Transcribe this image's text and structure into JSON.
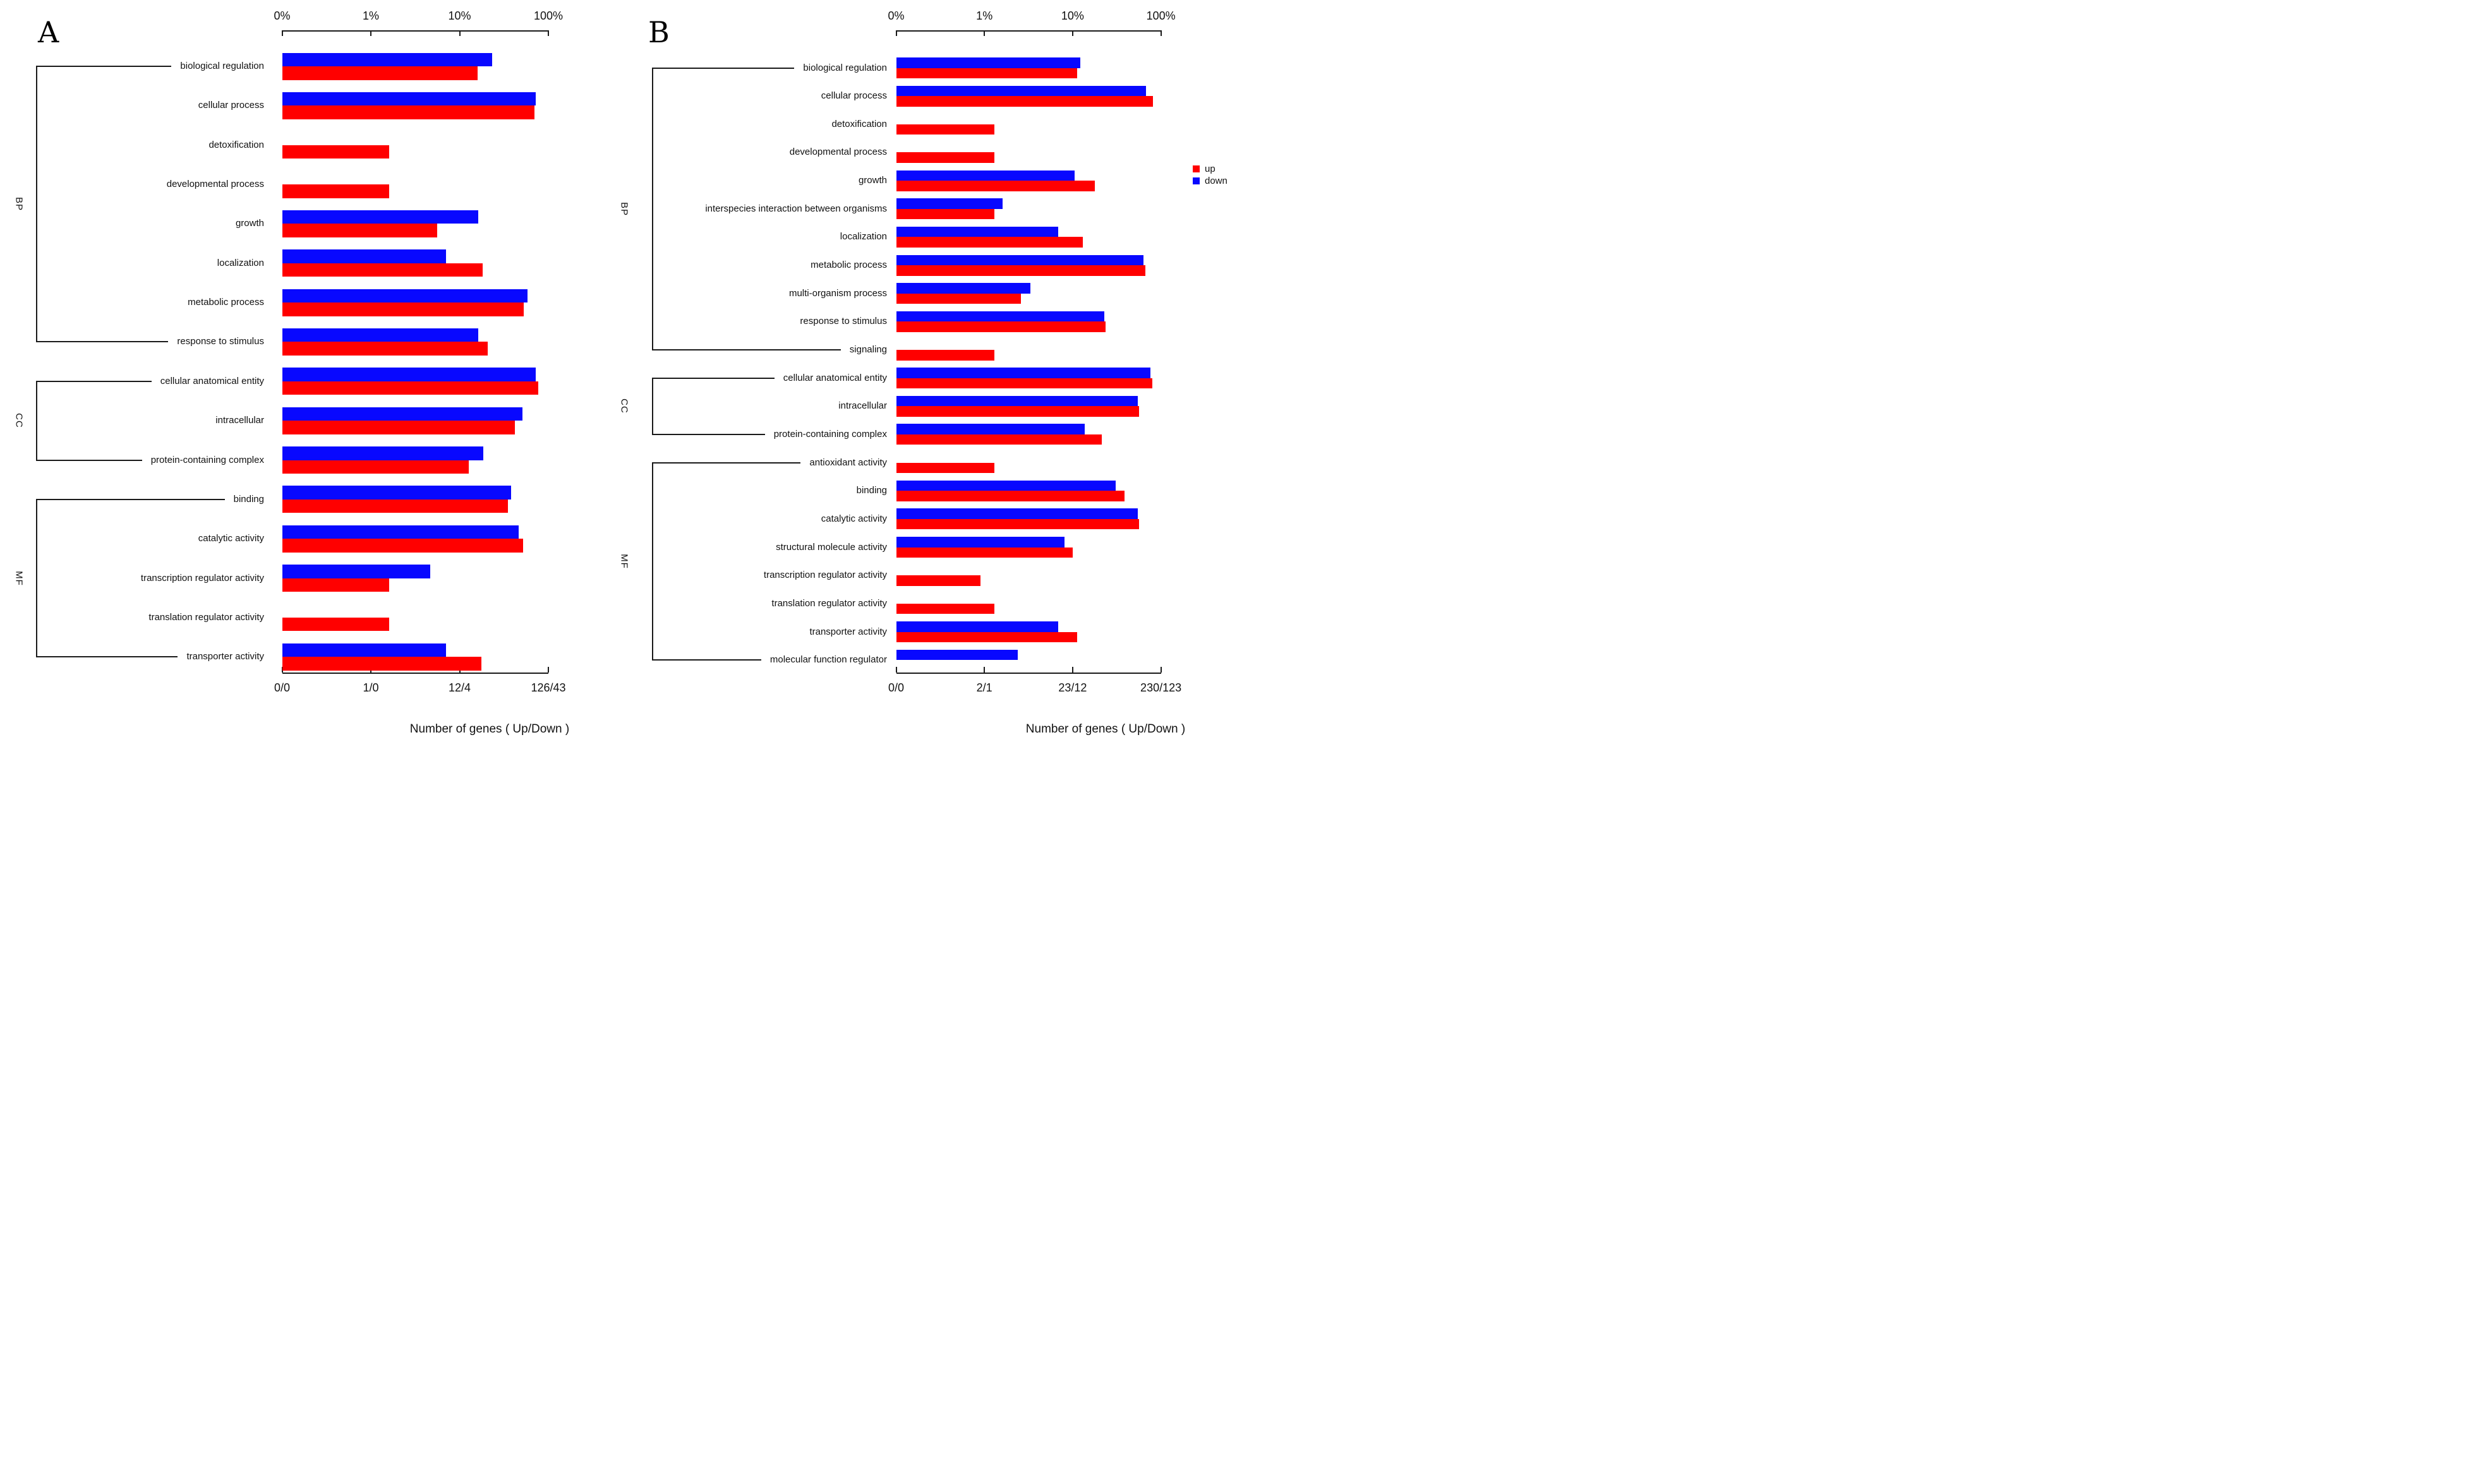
{
  "figure": {
    "background": "#ffffff",
    "colors": {
      "up": "#ff0000",
      "down": "#0808ff",
      "axis": "#1a1a1a"
    },
    "legend": {
      "up_label": "up",
      "down_label": "down",
      "position": "right-middle"
    },
    "xlabel": "Number of genes ( Up/Down )",
    "top_axis_ticks": [
      "0%",
      "1%",
      "10%",
      "100%"
    ]
  },
  "chart_data": [
    {
      "type": "bar",
      "panel": "A",
      "title": "A",
      "orientation": "horizontal",
      "x_scale": "log-percent (0%,1%,10%,100% evenly spaced)",
      "top_axis_ticks": [
        "0%",
        "1%",
        "10%",
        "100%"
      ],
      "bottom_axis_ticks": [
        "0/0",
        "1/0",
        "12/4",
        "126/43"
      ],
      "totals": {
        "up_genes": 126,
        "down_genes": 43
      },
      "xlabel": "Number of genes ( Up/Down )",
      "legend": null,
      "series_names": [
        "up",
        "down"
      ],
      "groups": [
        "BP",
        "CC",
        "MF"
      ],
      "categories": [
        {
          "label": "biological regulation",
          "group": "BP",
          "up_pct": 15.9,
          "down_pct": 23.3
        },
        {
          "label": "cellular process",
          "group": "BP",
          "up_pct": 69.8,
          "down_pct": 72.1
        },
        {
          "label": "detoxification",
          "group": "BP",
          "up_pct": 1.6,
          "down_pct": null
        },
        {
          "label": "developmental process",
          "group": "BP",
          "up_pct": 1.6,
          "down_pct": null
        },
        {
          "label": "growth",
          "group": "BP",
          "up_pct": 5.6,
          "down_pct": 16.3
        },
        {
          "label": "localization",
          "group": "BP",
          "up_pct": 18.3,
          "down_pct": 7.0
        },
        {
          "label": "metabolic process",
          "group": "BP",
          "up_pct": 52.4,
          "down_pct": 58.1
        },
        {
          "label": "response to stimulus",
          "group": "BP",
          "up_pct": 20.6,
          "down_pct": 16.3
        },
        {
          "label": "cellular anatomical entity",
          "group": "CC",
          "up_pct": 77.0,
          "down_pct": 72.1
        },
        {
          "label": "intracellular",
          "group": "CC",
          "up_pct": 42.1,
          "down_pct": 51.2
        },
        {
          "label": "protein-containing complex",
          "group": "CC",
          "up_pct": 12.7,
          "down_pct": 18.6
        },
        {
          "label": "binding",
          "group": "MF",
          "up_pct": 34.9,
          "down_pct": 38.0
        },
        {
          "label": "catalytic activity",
          "group": "MF",
          "up_pct": 51.6,
          "down_pct": 46.5
        },
        {
          "label": "transcription regulator activity",
          "group": "MF",
          "up_pct": 1.6,
          "down_pct": 4.7
        },
        {
          "label": "translation regulator activity",
          "group": "MF",
          "up_pct": 1.6,
          "down_pct": null
        },
        {
          "label": "transporter activity",
          "group": "MF",
          "up_pct": 17.5,
          "down_pct": 7.0
        }
      ]
    },
    {
      "type": "bar",
      "panel": "B",
      "title": "B",
      "orientation": "horizontal",
      "x_scale": "log-percent (0%,1%,10%,100% evenly spaced)",
      "top_axis_ticks": [
        "0%",
        "1%",
        "10%",
        "100%"
      ],
      "bottom_axis_ticks": [
        "0/0",
        "2/1",
        "23/12",
        "230/123"
      ],
      "totals": {
        "up_genes": 230,
        "down_genes": 123
      },
      "xlabel": "Number of genes ( Up/Down )",
      "legend": {
        "up": "up",
        "down": "down"
      },
      "series_names": [
        "up",
        "down"
      ],
      "groups": [
        "BP",
        "CC",
        "MF"
      ],
      "categories": [
        {
          "label": "biological regulation",
          "group": "BP",
          "up_pct": 11.3,
          "down_pct": 12.2
        },
        {
          "label": "cellular process",
          "group": "BP",
          "up_pct": 81.3,
          "down_pct": 68.3
        },
        {
          "label": "detoxification",
          "group": "BP",
          "up_pct": 1.3,
          "down_pct": null
        },
        {
          "label": "developmental process",
          "group": "BP",
          "up_pct": 1.3,
          "down_pct": null
        },
        {
          "label": "growth",
          "group": "BP",
          "up_pct": 17.8,
          "down_pct": 10.6
        },
        {
          "label": "interspecies interaction between organisms",
          "group": "BP",
          "up_pct": 1.3,
          "down_pct": 1.6
        },
        {
          "label": "localization",
          "group": "BP",
          "up_pct": 13.0,
          "down_pct": 6.9
        },
        {
          "label": "metabolic process",
          "group": "BP",
          "up_pct": 66.5,
          "down_pct": 63.4
        },
        {
          "label": "multi-organism process",
          "group": "BP",
          "up_pct": 2.6,
          "down_pct": 3.3
        },
        {
          "label": "response to stimulus",
          "group": "BP",
          "up_pct": 23.5,
          "down_pct": 22.8
        },
        {
          "label": "signaling",
          "group": "BP",
          "up_pct": 1.3,
          "down_pct": null
        },
        {
          "label": "cellular anatomical entity",
          "group": "CC",
          "up_pct": 80.0,
          "down_pct": 76.4
        },
        {
          "label": "intracellular",
          "group": "CC",
          "up_pct": 56.1,
          "down_pct": 54.5
        },
        {
          "label": "protein-containing complex",
          "group": "CC",
          "up_pct": 21.3,
          "down_pct": 13.8
        },
        {
          "label": "antioxidant activity",
          "group": "MF",
          "up_pct": 1.3,
          "down_pct": null
        },
        {
          "label": "binding",
          "group": "MF",
          "up_pct": 38.7,
          "down_pct": 30.9
        },
        {
          "label": "catalytic activity",
          "group": "MF",
          "up_pct": 56.1,
          "down_pct": 54.5
        },
        {
          "label": "structural molecule activity",
          "group": "MF",
          "up_pct": 10.0,
          "down_pct": 8.1
        },
        {
          "label": "transcription regulator activity",
          "group": "MF",
          "up_pct": 0.9,
          "down_pct": null
        },
        {
          "label": "translation regulator activity",
          "group": "MF",
          "up_pct": 1.3,
          "down_pct": null
        },
        {
          "label": "transporter activity",
          "group": "MF",
          "up_pct": 11.3,
          "down_pct": 6.9
        },
        {
          "label": "molecular function regulator",
          "group": "MF",
          "up_pct": null,
          "down_pct": 2.4
        }
      ]
    }
  ]
}
